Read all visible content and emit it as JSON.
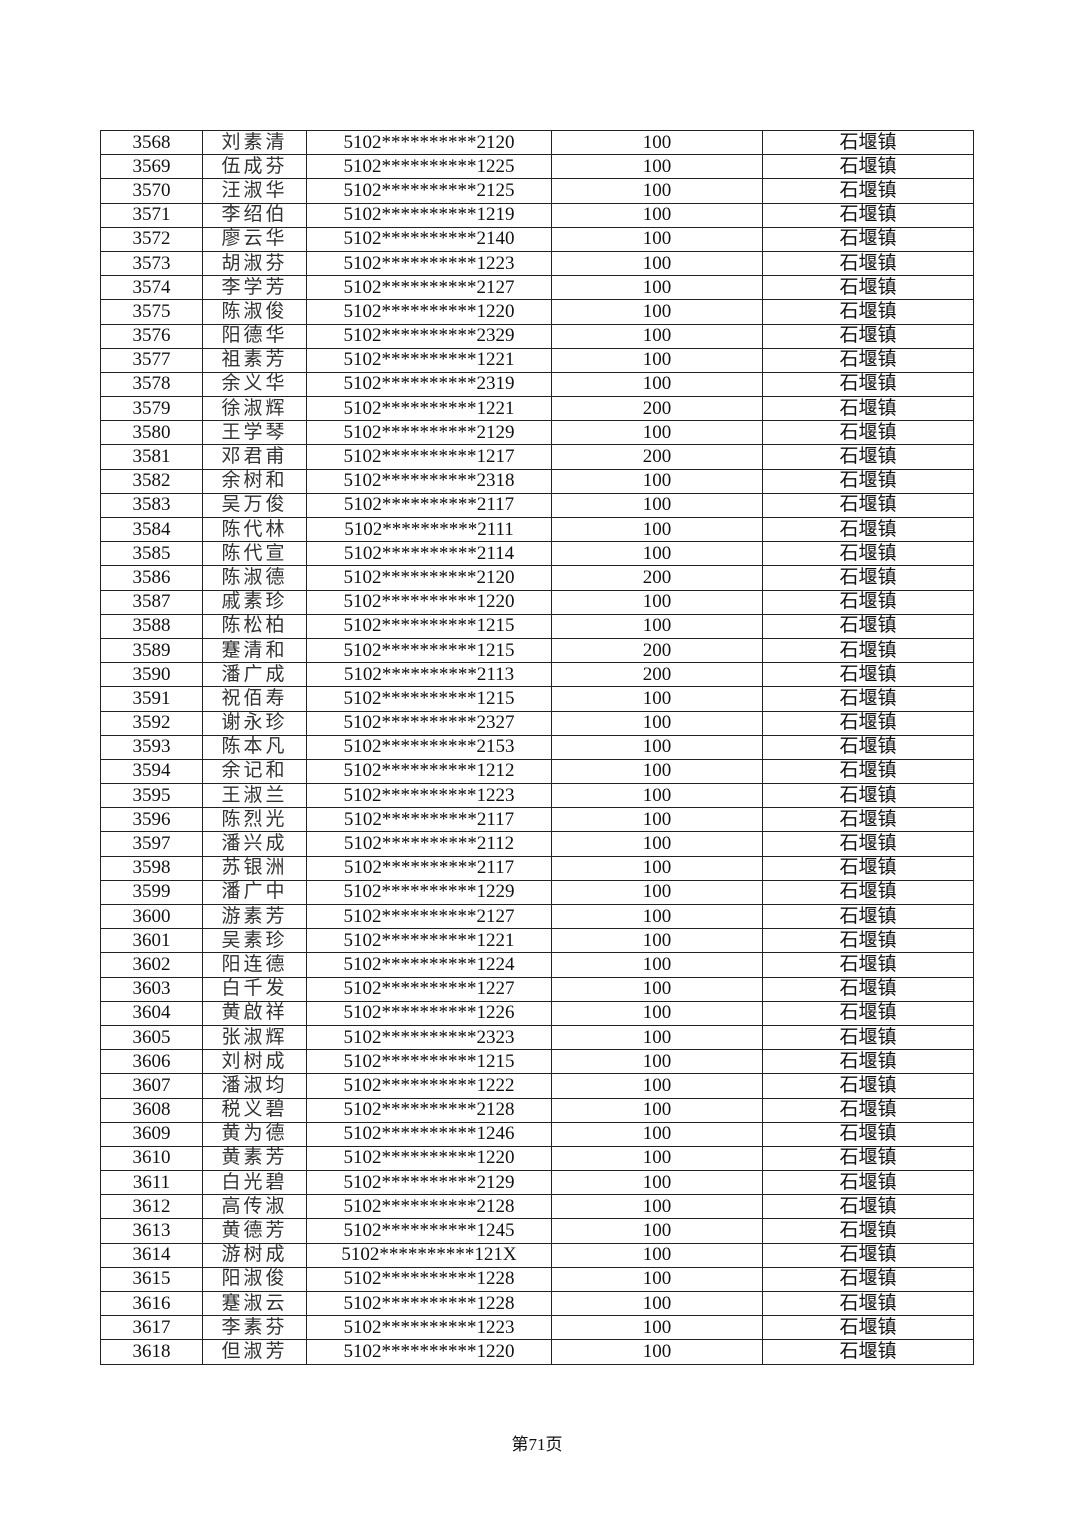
{
  "table": {
    "rows": [
      [
        "3568",
        "刘素清",
        "5102**********2120",
        "100",
        "石堰镇"
      ],
      [
        "3569",
        "伍成芬",
        "5102**********1225",
        "100",
        "石堰镇"
      ],
      [
        "3570",
        "汪淑华",
        "5102**********2125",
        "100",
        "石堰镇"
      ],
      [
        "3571",
        "李绍伯",
        "5102**********1219",
        "100",
        "石堰镇"
      ],
      [
        "3572",
        "廖云华",
        "5102**********2140",
        "100",
        "石堰镇"
      ],
      [
        "3573",
        "胡淑芬",
        "5102**********1223",
        "100",
        "石堰镇"
      ],
      [
        "3574",
        "李学芳",
        "5102**********2127",
        "100",
        "石堰镇"
      ],
      [
        "3575",
        "陈淑俊",
        "5102**********1220",
        "100",
        "石堰镇"
      ],
      [
        "3576",
        "阳德华",
        "5102**********2329",
        "100",
        "石堰镇"
      ],
      [
        "3577",
        "祖素芳",
        "5102**********1221",
        "100",
        "石堰镇"
      ],
      [
        "3578",
        "余义华",
        "5102**********2319",
        "100",
        "石堰镇"
      ],
      [
        "3579",
        "徐淑辉",
        "5102**********1221",
        "200",
        "石堰镇"
      ],
      [
        "3580",
        "王学琴",
        "5102**********2129",
        "100",
        "石堰镇"
      ],
      [
        "3581",
        "邓君甫",
        "5102**********1217",
        "200",
        "石堰镇"
      ],
      [
        "3582",
        "余树和",
        "5102**********2318",
        "100",
        "石堰镇"
      ],
      [
        "3583",
        "吴万俊",
        "5102**********2117",
        "100",
        "石堰镇"
      ],
      [
        "3584",
        "陈代林",
        "5102**********2111",
        "100",
        "石堰镇"
      ],
      [
        "3585",
        "陈代宣",
        "5102**********2114",
        "100",
        "石堰镇"
      ],
      [
        "3586",
        "陈淑德",
        "5102**********2120",
        "200",
        "石堰镇"
      ],
      [
        "3587",
        "戚素珍",
        "5102**********1220",
        "100",
        "石堰镇"
      ],
      [
        "3588",
        "陈松柏",
        "5102**********1215",
        "100",
        "石堰镇"
      ],
      [
        "3589",
        "蹇清和",
        "5102**********1215",
        "200",
        "石堰镇"
      ],
      [
        "3590",
        "潘广成",
        "5102**********2113",
        "200",
        "石堰镇"
      ],
      [
        "3591",
        "祝佰寿",
        "5102**********1215",
        "100",
        "石堰镇"
      ],
      [
        "3592",
        "谢永珍",
        "5102**********2327",
        "100",
        "石堰镇"
      ],
      [
        "3593",
        "陈本凡",
        "5102**********2153",
        "100",
        "石堰镇"
      ],
      [
        "3594",
        "余记和",
        "5102**********1212",
        "100",
        "石堰镇"
      ],
      [
        "3595",
        "王淑兰",
        "5102**********1223",
        "100",
        "石堰镇"
      ],
      [
        "3596",
        "陈烈光",
        "5102**********2117",
        "100",
        "石堰镇"
      ],
      [
        "3597",
        "潘兴成",
        "5102**********2112",
        "100",
        "石堰镇"
      ],
      [
        "3598",
        "苏银洲",
        "5102**********2117",
        "100",
        "石堰镇"
      ],
      [
        "3599",
        "潘广中",
        "5102**********1229",
        "100",
        "石堰镇"
      ],
      [
        "3600",
        "游素芳",
        "5102**********2127",
        "100",
        "石堰镇"
      ],
      [
        "3601",
        "吴素珍",
        "5102**********1221",
        "100",
        "石堰镇"
      ],
      [
        "3602",
        "阳连德",
        "5102**********1224",
        "100",
        "石堰镇"
      ],
      [
        "3603",
        "白千发",
        "5102**********1227",
        "100",
        "石堰镇"
      ],
      [
        "3604",
        "黄啟祥",
        "5102**********1226",
        "100",
        "石堰镇"
      ],
      [
        "3605",
        "张淑辉",
        "5102**********2323",
        "100",
        "石堰镇"
      ],
      [
        "3606",
        "刘树成",
        "5102**********1215",
        "100",
        "石堰镇"
      ],
      [
        "3607",
        "潘淑均",
        "5102**********1222",
        "100",
        "石堰镇"
      ],
      [
        "3608",
        "税义碧",
        "5102**********2128",
        "100",
        "石堰镇"
      ],
      [
        "3609",
        "黄为德",
        "5102**********1246",
        "100",
        "石堰镇"
      ],
      [
        "3610",
        "黄素芳",
        "5102**********1220",
        "100",
        "石堰镇"
      ],
      [
        "3611",
        "白光碧",
        "5102**********2129",
        "100",
        "石堰镇"
      ],
      [
        "3612",
        "高传淑",
        "5102**********2128",
        "100",
        "石堰镇"
      ],
      [
        "3613",
        "黄德芳",
        "5102**********1245",
        "100",
        "石堰镇"
      ],
      [
        "3614",
        "游树成",
        "5102**********121X",
        "100",
        "石堰镇"
      ],
      [
        "3615",
        "阳淑俊",
        "5102**********1228",
        "100",
        "石堰镇"
      ],
      [
        "3616",
        "蹇淑云",
        "5102**********1228",
        "100",
        "石堰镇"
      ],
      [
        "3617",
        "李素芬",
        "5102**********1223",
        "100",
        "石堰镇"
      ],
      [
        "3618",
        "但淑芳",
        "5102**********1220",
        "100",
        "石堰镇"
      ]
    ]
  },
  "footer": {
    "page_label": "第71页"
  }
}
